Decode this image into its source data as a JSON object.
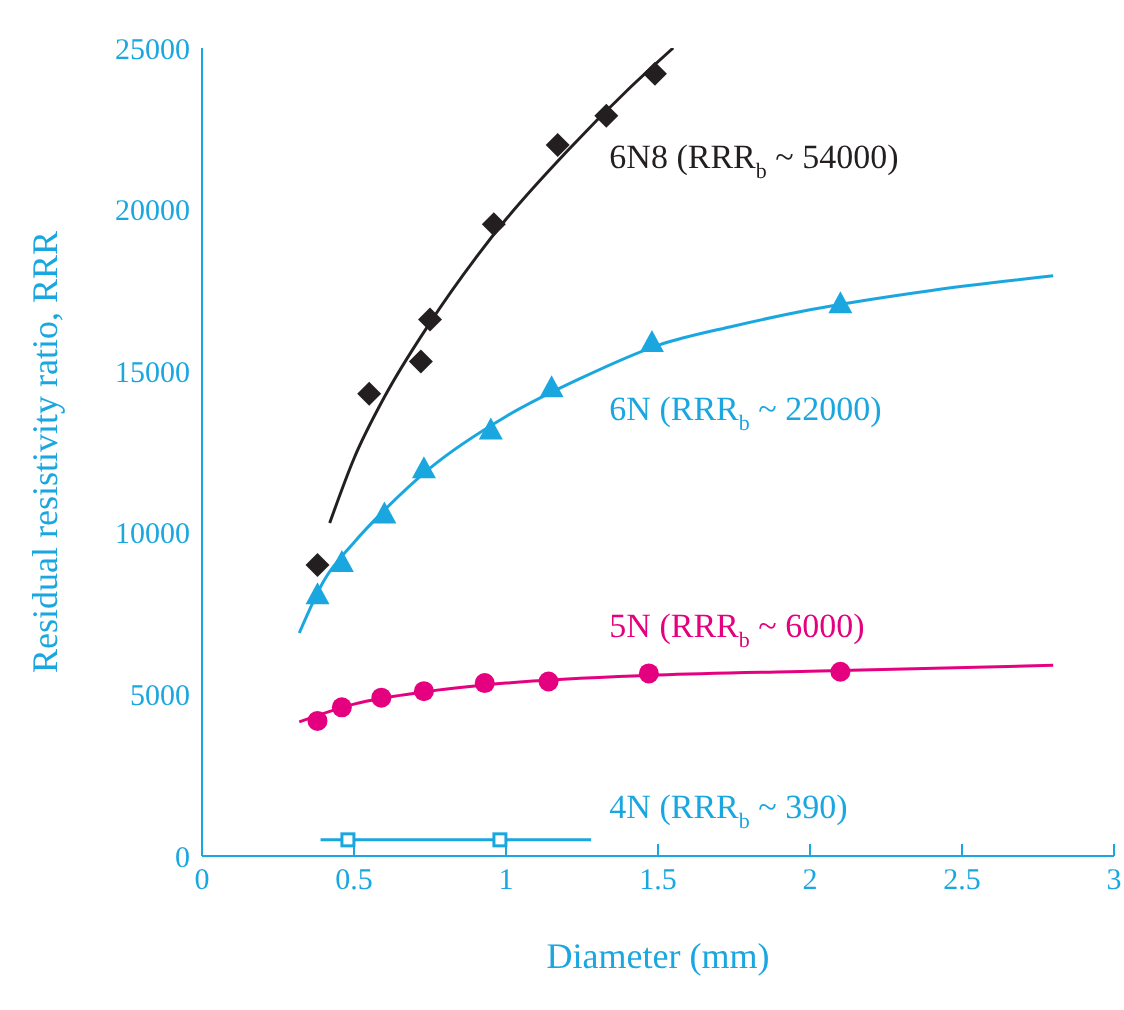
{
  "chart_data": {
    "type": "scatter",
    "xlabel": "Diameter (mm)",
    "ylabel": "Residual resistivity ratio, RRR",
    "xlim": [
      0,
      3
    ],
    "xticks": [
      0,
      0.5,
      1,
      1.5,
      2,
      2.5,
      3
    ],
    "ylim": [
      0,
      25000
    ],
    "yticks": [
      0,
      5000,
      10000,
      15000,
      20000,
      25000
    ],
    "grid": false,
    "legend": false,
    "series": [
      {
        "name": "6N8 (RRR$_{b}$ ~ 54000)",
        "color": "#231f20",
        "marker": "diamond",
        "x": [
          0.38,
          0.55,
          0.72,
          0.75,
          0.96,
          1.17,
          1.33,
          1.49
        ],
        "values": [
          9000,
          14300,
          15300,
          16600,
          19550,
          22000,
          22900,
          24200
        ]
      },
      {
        "type": "line",
        "color": "#231f20",
        "marker": "none",
        "x": [
          0.42,
          0.5,
          0.6,
          0.75,
          0.9,
          1.0,
          1.2,
          1.4,
          1.55
        ],
        "values": [
          10300,
          12300,
          14200,
          16500,
          18500,
          19700,
          21800,
          23700,
          25000
        ]
      },
      {
        "name": "6N (RRR$_{b}$ ~ 22000)",
        "color": "#1aa7e0",
        "marker": "triangle",
        "x": [
          0.38,
          0.46,
          0.6,
          0.73,
          0.95,
          1.15,
          1.48,
          2.1
        ],
        "values": [
          8100,
          9100,
          10600,
          12000,
          13200,
          14500,
          15900,
          17100
        ]
      },
      {
        "type": "line",
        "color": "#1aa7e0",
        "marker": "none",
        "x": [
          0.32,
          0.4,
          0.5,
          0.6,
          0.75,
          1.0,
          1.25,
          1.5,
          1.75,
          2.0,
          2.4,
          2.8
        ],
        "values": [
          6900,
          8500,
          9700,
          10700,
          12000,
          13600,
          14800,
          15800,
          16400,
          16900,
          17500,
          17950
        ]
      },
      {
        "name": "5N (RRR$_{b}$ ~ 6000)",
        "color": "#e4007f",
        "marker": "circle",
        "x": [
          0.38,
          0.46,
          0.59,
          0.73,
          0.93,
          1.14,
          1.47,
          2.1
        ],
        "values": [
          4180,
          4600,
          4900,
          5100,
          5350,
          5400,
          5650,
          5700
        ]
      },
      {
        "type": "line",
        "color": "#e4007f",
        "marker": "none",
        "x": [
          0.32,
          0.5,
          0.75,
          1.0,
          1.5,
          2.0,
          2.8
        ],
        "values": [
          4150,
          4700,
          5100,
          5350,
          5600,
          5720,
          5900
        ]
      },
      {
        "color": "#1aa7e0",
        "marker": "square",
        "x": [
          0.48,
          0.98
        ],
        "values": [
          500,
          500
        ]
      },
      {
        "name": "4N (RRR$_{b}$ ~ 390)",
        "type": "line",
        "color": "#1aa7e0",
        "marker": "none",
        "x": [
          0.39,
          1.28
        ],
        "values": [
          500,
          500
        ]
      }
    ]
  }
}
